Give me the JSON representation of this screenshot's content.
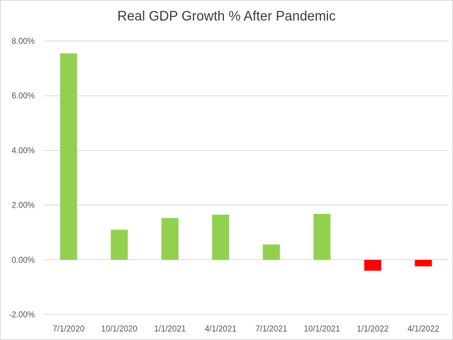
{
  "chart_data": {
    "type": "bar",
    "title": "Real GDP Growth % After Pandemic",
    "xlabel": "",
    "ylabel": "",
    "categories": [
      "7/1/2020",
      "10/1/2020",
      "1/1/2021",
      "4/1/2021",
      "7/1/2021",
      "10/1/2021",
      "1/1/2022",
      "4/1/2022"
    ],
    "series": [
      {
        "values": [
          7.55,
          1.1,
          1.53,
          1.65,
          0.56,
          1.68,
          -0.4,
          -0.24
        ]
      }
    ],
    "ylim": [
      -2,
      8
    ],
    "yticks": [
      -2,
      0,
      2,
      4,
      6,
      8
    ],
    "ytick_labels": [
      "-2.00%",
      "0.00%",
      "2.00%",
      "4.00%",
      "6.00%",
      "8.00%"
    ],
    "grid": true,
    "legend": "none",
    "colors": {
      "positive": "#92d050",
      "negative": "#ff0000",
      "gridline": "#d9d9d9",
      "axis_text": "#595959",
      "title": "#404040"
    }
  }
}
